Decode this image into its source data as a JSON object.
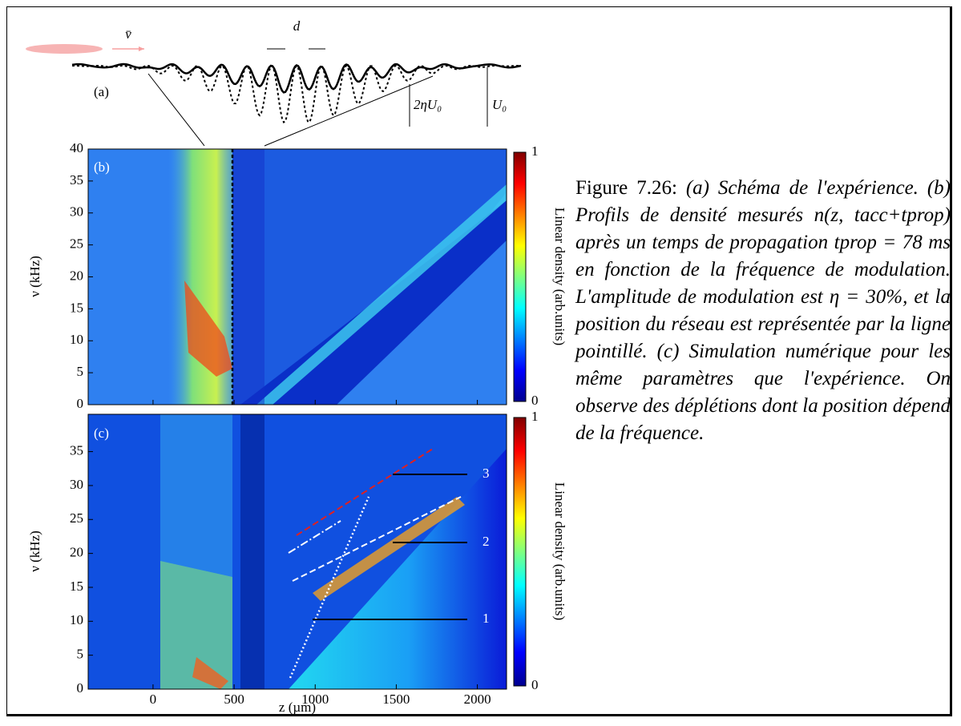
{
  "panel_a": {
    "label": "(a)",
    "velocity": "v̄",
    "spacing": "d",
    "depth_modulation": "2ηU₀",
    "depth": "U₀"
  },
  "panel_b": {
    "label": "(b)",
    "ylabel": "ν (kHz)",
    "ylim": [
      0,
      40
    ],
    "yticks": [
      0,
      5,
      10,
      15,
      20,
      25,
      30,
      35,
      40
    ],
    "colorbar_label": "Linear density (arb.units)",
    "colorbar_ticks": [
      0,
      1
    ]
  },
  "panel_c": {
    "label": "(c)",
    "ylabel": "ν (kHz)",
    "ylim": [
      0,
      40.5
    ],
    "yticks": [
      0,
      5,
      10,
      15,
      20,
      25,
      30,
      35
    ],
    "colorbar_label": "Linear density (arb.units)",
    "colorbar_ticks": [
      0,
      1
    ],
    "annotations": [
      "1",
      "2",
      "3"
    ]
  },
  "x_axis": {
    "label": "z (µm)",
    "xlim": [
      -400,
      2180
    ],
    "xticks": [
      0,
      500,
      1000,
      1500,
      2000
    ]
  },
  "caption": {
    "label": "Figure 7.26:",
    "text": "(a) Schéma de l'expérience. (b) Profils de densité mesurés n(z, tacc+tprop) après un temps de propagation tprop = 78 ms en fonction de la fréquence de modulation. L'amplitude de modulation est η = 30%, et la position du réseau est représentée par la ligne pointillé. (c) Simulation numérique pour les même paramètres que l'expérience. On observe des déplétions dont la position dépend de la fréquence."
  }
}
